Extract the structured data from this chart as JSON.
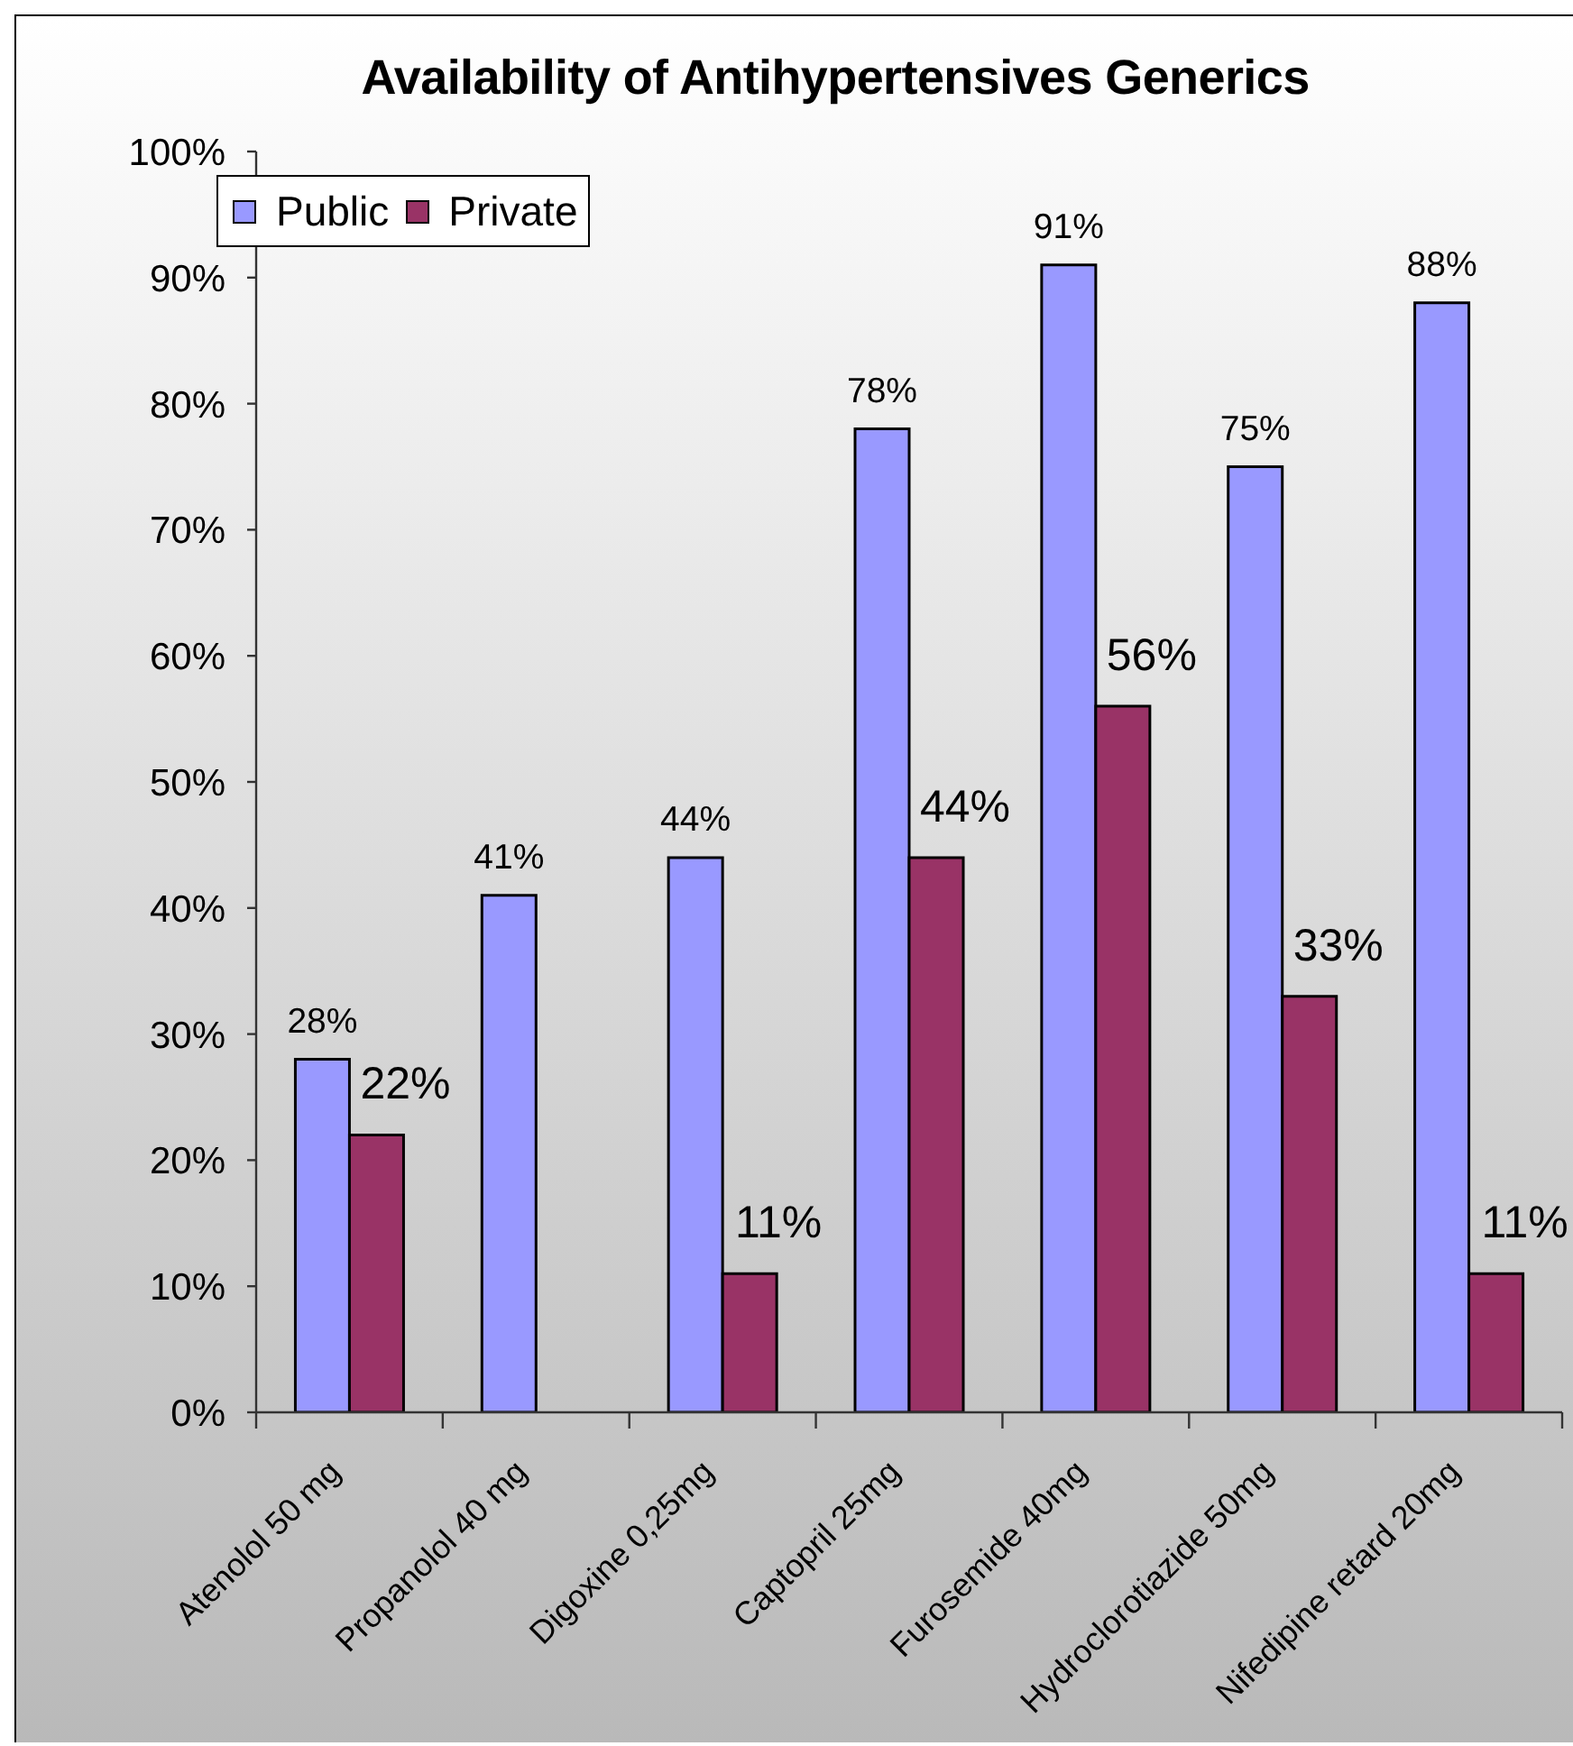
{
  "chart_data": {
    "type": "bar",
    "title": "Availability of Antihypertensives Generics",
    "categories": [
      "Atenolol 50 mg",
      "Propanolol 40 mg",
      "Digoxine 0,25mg",
      "Captopril 25mg",
      "Furosemide 40mg",
      "Hydroclorotiazide 50mg",
      "Nifedipine retard 20mg"
    ],
    "series": [
      {
        "name": "Public",
        "color": "#9999ff",
        "values": [
          28,
          41,
          44,
          78,
          91,
          75,
          88
        ],
        "value_labels": [
          "28%",
          "41%",
          "44%",
          "78%",
          "91%",
          "75%",
          "88%"
        ]
      },
      {
        "name": "Private",
        "color": "#993366",
        "values": [
          22,
          null,
          11,
          44,
          56,
          33,
          11
        ],
        "value_labels": [
          "22%",
          null,
          "11%",
          "44%",
          "56%",
          "33%",
          "11%"
        ]
      }
    ],
    "ylim": [
      0,
      100
    ],
    "yticks": [
      {
        "value": 0,
        "label": "0%"
      },
      {
        "value": 10,
        "label": "10%"
      },
      {
        "value": 20,
        "label": "20%"
      },
      {
        "value": 30,
        "label": "30%"
      },
      {
        "value": 40,
        "label": "40%"
      },
      {
        "value": 50,
        "label": "50%"
      },
      {
        "value": 60,
        "label": "60%"
      },
      {
        "value": 70,
        "label": "70%"
      },
      {
        "value": 80,
        "label": "80%"
      },
      {
        "value": 90,
        "label": "90%"
      },
      {
        "value": 100,
        "label": "100%"
      }
    ],
    "legend": "top left"
  }
}
